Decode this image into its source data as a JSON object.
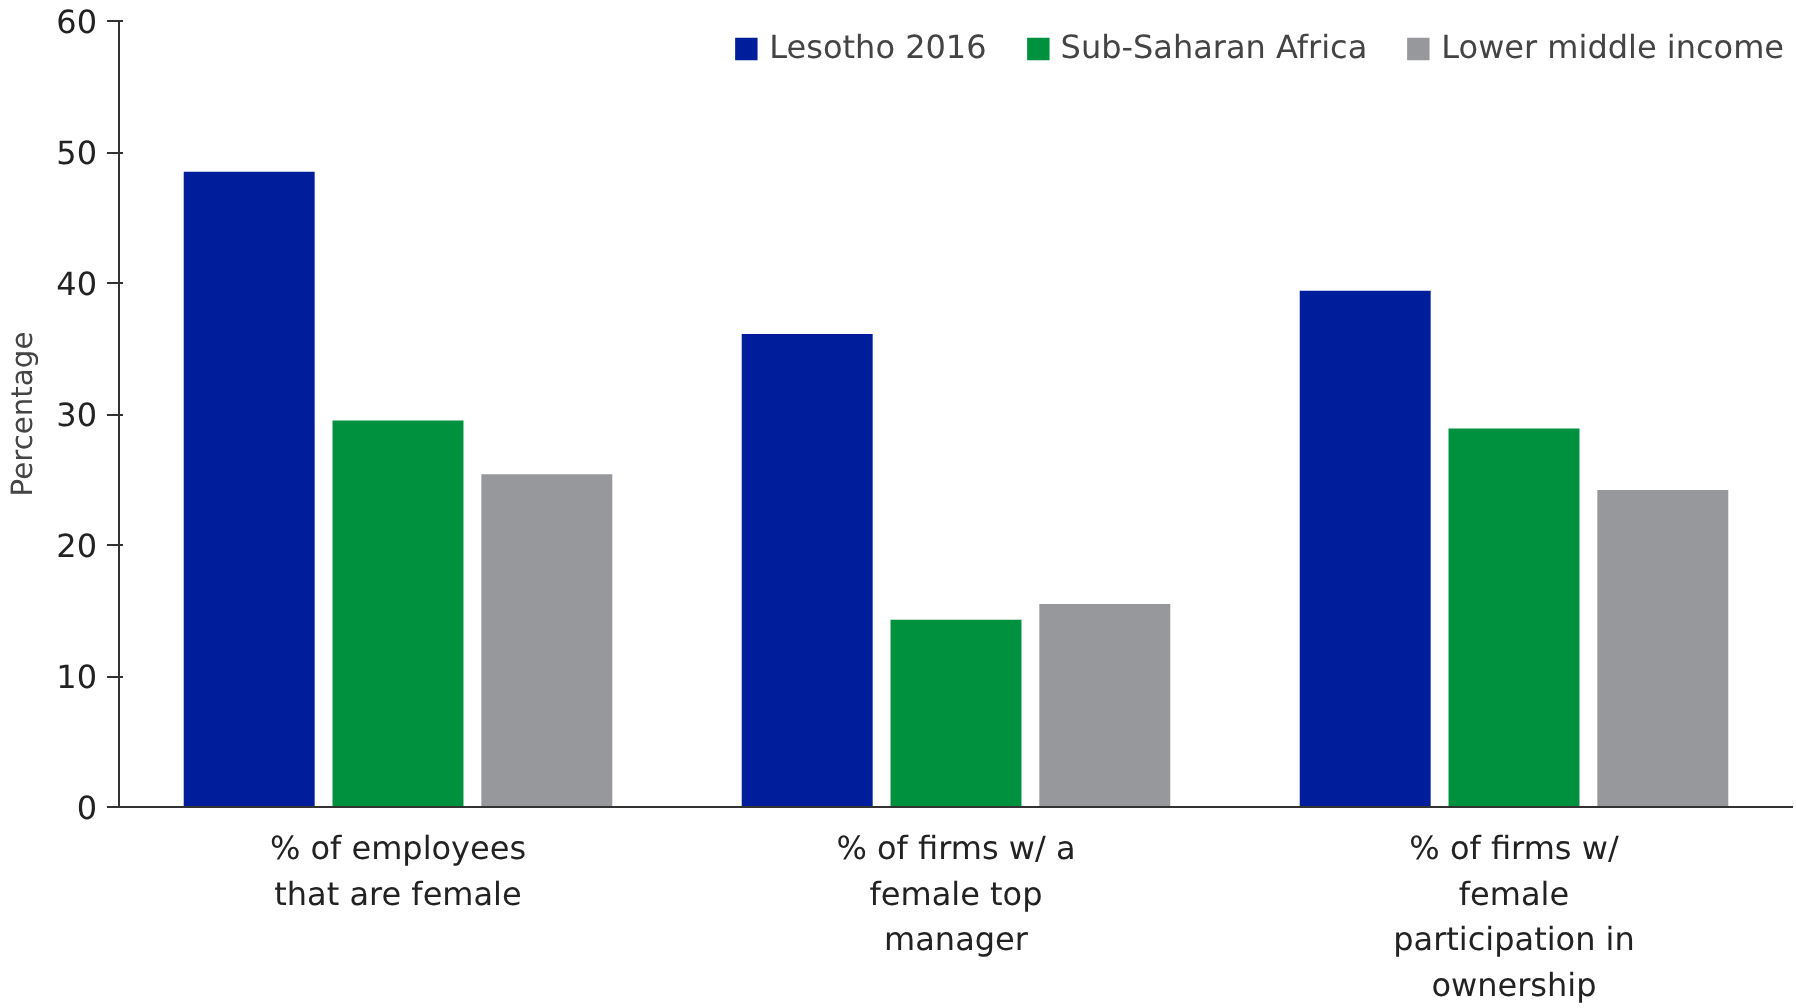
{
  "chart_data": {
    "type": "bar",
    "ylabel": "Percentage",
    "categories": [
      "% of employees that are female",
      "% of firms w/ a female top manager",
      "% of firms w/ female participation in ownership"
    ],
    "series": [
      {
        "name": "Lesotho 2016",
        "color": "#001e9b",
        "values": [
          48.5,
          36.1,
          39.4
        ]
      },
      {
        "name": "Sub-Saharan Africa",
        "color": "#00913f",
        "values": [
          29.5,
          14.3,
          28.9
        ]
      },
      {
        "name": "Lower middle income",
        "color": "#97989c",
        "values": [
          25.4,
          15.5,
          24.2
        ]
      }
    ],
    "ylim": [
      0,
      60
    ],
    "yticks": [
      0,
      10,
      20,
      30,
      40,
      50,
      60
    ],
    "grid": false,
    "legend": "top right"
  }
}
